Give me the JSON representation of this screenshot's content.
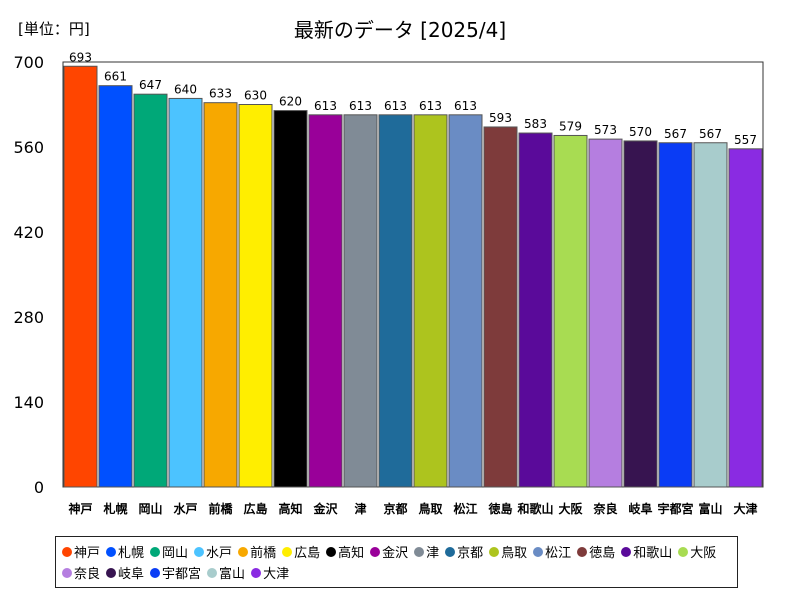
{
  "unit_label": "[単位：円]",
  "chart_data": {
    "type": "bar",
    "title": "最新のデータ [2025/4]",
    "ylim": [
      0,
      700
    ],
    "yticks": [
      0,
      140,
      280,
      420,
      560,
      700
    ],
    "grid": false,
    "legend": "bottom",
    "categories": [
      "神戸",
      "札幌",
      "岡山",
      "水戸",
      "前橋",
      "広島",
      "高知",
      "金沢",
      "津",
      "京都",
      "鳥取",
      "松江",
      "徳島",
      "和歌山",
      "大阪",
      "奈良",
      "岐阜",
      "宇都宮",
      "富山",
      "大津"
    ],
    "values": [
      693,
      661,
      647,
      640,
      633,
      630,
      620,
      613,
      613,
      613,
      613,
      613,
      593,
      583,
      579,
      573,
      570,
      567,
      567,
      557
    ],
    "colors": [
      "#ff4500",
      "#0050ff",
      "#00a878",
      "#4cc3ff",
      "#f7a800",
      "#ffee00",
      "#000000",
      "#990099",
      "#808b96",
      "#1f6b9a",
      "#adc41e",
      "#6a8cc4",
      "#7e3b3b",
      "#5a0a9a",
      "#a8dc52",
      "#b57ee0",
      "#371450",
      "#0a3cf5",
      "#a8cccc",
      "#8a2be2"
    ]
  }
}
